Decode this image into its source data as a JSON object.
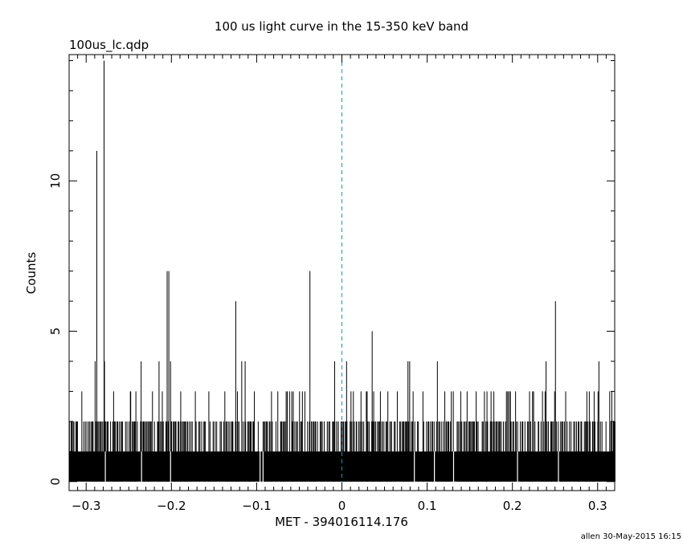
{
  "chart_data": {
    "type": "bar",
    "title": "100 us light curve in the 15-350 keV band",
    "subtitle": "100us_lc.qdp",
    "xlabel": "MET - 394016114.176",
    "ylabel": "Counts",
    "footer": "allen 30-May-2015 16:15",
    "xlim": [
      -0.32,
      0.32
    ],
    "ylim": [
      -0.3,
      14.2
    ],
    "x_ticks": [
      -0.3,
      -0.2,
      -0.1,
      0,
      0.1,
      0.2,
      0.3
    ],
    "x_tick_labels": [
      "−0.3",
      "−0.2",
      "−0.1",
      "0",
      "0.1",
      "0.2",
      "0.3"
    ],
    "y_ticks": [
      0,
      5,
      10
    ],
    "y_tick_labels": [
      "0",
      "5",
      "10"
    ],
    "bin_width": 0.0001,
    "baseline_counts": 1,
    "reference_line": {
      "x": 0,
      "style": "dashed",
      "color": "#1e90c8"
    },
    "peaks": [
      {
        "x": -0.2895,
        "y": 4
      },
      {
        "x": -0.2875,
        "y": 11
      },
      {
        "x": -0.279,
        "y": 14
      },
      {
        "x": -0.2785,
        "y": 4
      },
      {
        "x": -0.2355,
        "y": 4
      },
      {
        "x": -0.2145,
        "y": 4
      },
      {
        "x": -0.205,
        "y": 7
      },
      {
        "x": -0.203,
        "y": 7
      },
      {
        "x": -0.201,
        "y": 4
      },
      {
        "x": -0.1245,
        "y": 6
      },
      {
        "x": -0.1175,
        "y": 4
      },
      {
        "x": -0.1135,
        "y": 4
      },
      {
        "x": -0.0375,
        "y": 7
      },
      {
        "x": -0.0085,
        "y": 4
      },
      {
        "x": 0.0055,
        "y": 4
      },
      {
        "x": 0.0355,
        "y": 5
      },
      {
        "x": 0.0775,
        "y": 4
      },
      {
        "x": 0.0795,
        "y": 4
      },
      {
        "x": 0.112,
        "y": 4
      },
      {
        "x": 0.2395,
        "y": 4
      },
      {
        "x": 0.2505,
        "y": 6
      },
      {
        "x": 0.3015,
        "y": 4
      }
    ],
    "zero_gaps": [
      -0.2775,
      -0.235,
      -0.201,
      -0.096,
      -0.0925,
      0.085,
      0.1085,
      0.131,
      0.206,
      0.254
    ]
  }
}
